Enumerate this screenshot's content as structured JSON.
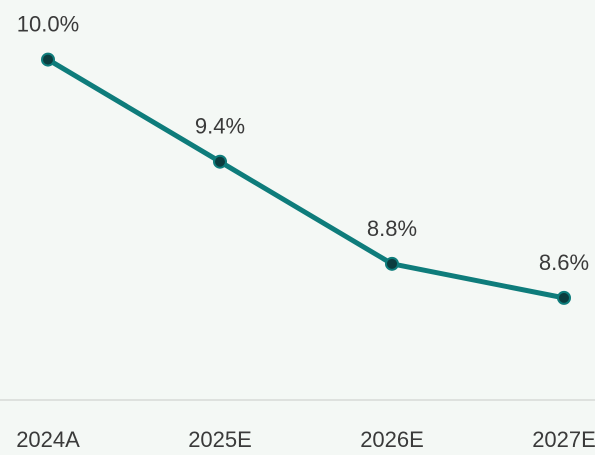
{
  "chart_data": {
    "type": "line",
    "categories": [
      "2024A",
      "2025E",
      "2026E",
      "2027E"
    ],
    "values": [
      10.0,
      9.4,
      8.8,
      8.6
    ],
    "value_labels": [
      "10.0%",
      "9.4%",
      "8.8%",
      "8.6%"
    ],
    "color": "#0e7c7b",
    "ylim": [
      8.0,
      10.35
    ]
  }
}
